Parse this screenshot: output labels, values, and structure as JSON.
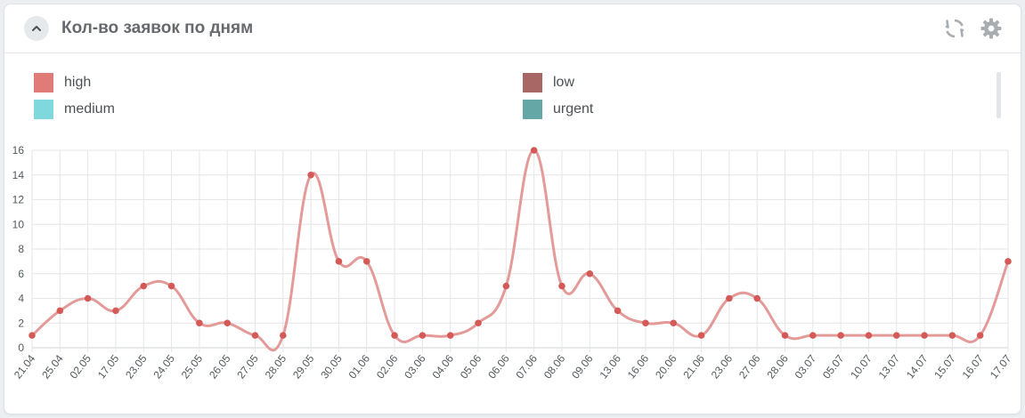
{
  "header": {
    "title": "Кол-во заявок по дням",
    "collapse_icon": "chevron-up-icon",
    "refresh_icon": "refresh-icon",
    "settings_icon": "gear-icon"
  },
  "legend": {
    "items": [
      {
        "label": "high",
        "color": "#e07b78"
      },
      {
        "label": "low",
        "color": "#a86664"
      },
      {
        "label": "medium",
        "color": "#7ed8dc"
      },
      {
        "label": "urgent",
        "color": "#65a6a6"
      }
    ]
  },
  "chart_data": {
    "type": "line",
    "categories": [
      "21.04",
      "25.04",
      "02.05",
      "17.05",
      "23.05",
      "24.05",
      "25.05",
      "26.05",
      "27.05",
      "28.05",
      "29.05",
      "30.05",
      "01.06",
      "02.06",
      "03.06",
      "04.06",
      "05.06",
      "06.06",
      "07.06",
      "08.06",
      "09.06",
      "13.06",
      "16.06",
      "20.06",
      "21.06",
      "23.06",
      "27.06",
      "28.06",
      "03.07",
      "05.07",
      "10.07",
      "13.07",
      "14.07",
      "15.07",
      "16.07",
      "17.07"
    ],
    "series": [
      {
        "name": "high",
        "color": "#e07b78",
        "values": [
          1,
          3,
          4,
          3,
          5,
          5,
          2,
          2,
          1,
          1,
          14,
          7,
          7,
          1,
          1,
          1,
          2,
          5,
          16,
          5,
          6,
          3,
          2,
          2,
          1,
          4,
          4,
          1,
          1,
          1,
          1,
          1,
          1,
          1,
          1,
          7
        ]
      }
    ],
    "yticks": [
      0,
      2,
      4,
      6,
      8,
      10,
      12,
      14,
      16
    ],
    "ylim": [
      0,
      16
    ],
    "grid": true,
    "line_color": "#e39a98",
    "point_color": "#d45a58"
  }
}
